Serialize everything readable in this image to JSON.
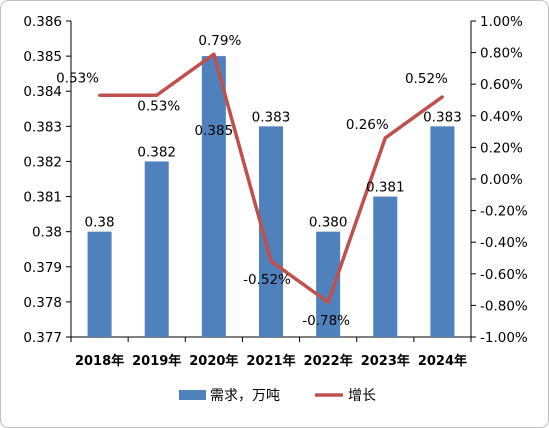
{
  "chart_data": {
    "type": "bar",
    "categories": [
      "2018年",
      "2019年",
      "2020年",
      "2021年",
      "2022年",
      "2023年",
      "2024年"
    ],
    "series": [
      {
        "name": "需求，万吨",
        "type": "bar",
        "axis": "left",
        "values": [
          0.38,
          0.382,
          0.385,
          0.383,
          0.38,
          0.381,
          0.383
        ],
        "labels": [
          "0.38",
          "0.382",
          "0.385",
          "0.383",
          "0.380",
          "0.381",
          "0.383"
        ],
        "color": "#4f81bd"
      },
      {
        "name": "增长",
        "type": "line",
        "axis": "right",
        "values": [
          0.53,
          0.53,
          0.79,
          -0.52,
          -0.78,
          0.26,
          0.52
        ],
        "labels": [
          "0.53%",
          "0.53%",
          "0.79%",
          "-0.52%",
          "-0.78%",
          "0.26%",
          "0.52%"
        ],
        "color": "#c0504d"
      }
    ],
    "y_left": {
      "range": [
        0.377,
        0.386
      ],
      "ticks": [
        0.377,
        0.378,
        0.379,
        0.38,
        0.381,
        0.382,
        0.383,
        0.384,
        0.385,
        0.386
      ],
      "tick_labels": [
        "0.377",
        "0.378",
        "0.379",
        "0.38",
        "0.381",
        "0.382",
        "0.383",
        "0.384",
        "0.385",
        "0.386"
      ]
    },
    "y_right": {
      "range": [
        -1.0,
        1.0
      ],
      "ticks": [
        -1.0,
        -0.8,
        -0.6,
        -0.4,
        -0.2,
        0.0,
        0.2,
        0.4,
        0.6,
        0.8,
        1.0
      ],
      "tick_labels": [
        "-1.00%",
        "-0.80%",
        "-0.60%",
        "-0.40%",
        "-0.20%",
        "0.00%",
        "0.20%",
        "0.40%",
        "0.60%",
        "0.80%",
        "1.00%"
      ]
    },
    "grid": false,
    "legend_position": "bottom"
  }
}
